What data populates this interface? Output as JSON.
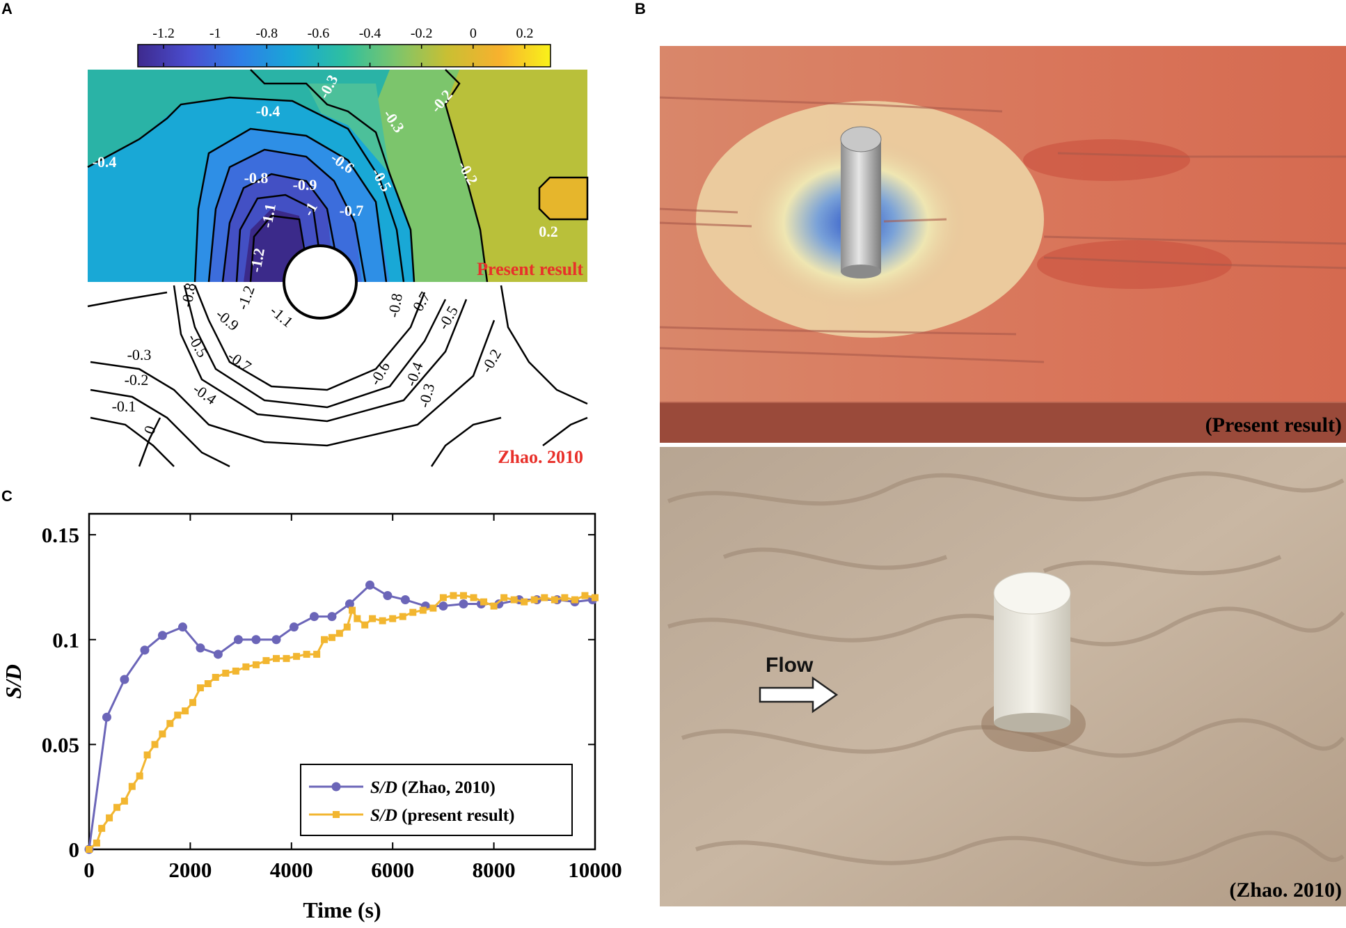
{
  "panels": {
    "a": {
      "letter": "A",
      "colorbar_ticks": [
        "-1.2",
        "-1",
        "-0.8",
        "-0.6",
        "-0.4",
        "-0.2",
        "0",
        "0.2"
      ],
      "colorbar_values": [
        -1.2,
        -1.0,
        -0.8,
        -0.6,
        -0.4,
        -0.2,
        0.0,
        0.2
      ],
      "colorbar_range": [
        -1.3,
        0.3
      ],
      "colorbar_colors": [
        "#3e2a8e",
        "#4a4ed0",
        "#2e7fe6",
        "#19a8d6",
        "#2ebfa0",
        "#7cc56c",
        "#c9bf33",
        "#f7b12e",
        "#f9f21a"
      ],
      "top_labels": [
        "-0.3",
        "-0.2",
        "-0.4",
        "-0.3",
        "-0.4",
        "-0.2",
        "-0.6",
        "-0.5",
        "-0.8",
        "-0.9",
        "-1.1",
        "-1",
        "-0.7",
        "-1.2",
        "0.2"
      ],
      "top_caption": "Present result",
      "bottom_labels": [
        "-0.8",
        "-0.7",
        "-0.8",
        "-1.2",
        "-0.9",
        "-1.1",
        "-0.5",
        "-0.5",
        "-0.7",
        "-0.3",
        "-0.6",
        "-0.4",
        "-0.2",
        "-0.3",
        "-0.2",
        "-0.4",
        "-0.1",
        "0"
      ],
      "bottom_caption": "Zhao. 2010",
      "caption_color": "#e8302a"
    },
    "b": {
      "letter": "B",
      "top_caption": "(Present result)",
      "bottom_caption": "(Zhao. 2010)",
      "flow_label": "Flow"
    },
    "c": {
      "letter": "C",
      "chart_data": {
        "type": "line",
        "xlabel": "Time (s)",
        "ylabel": "S/D",
        "xlim": [
          0,
          10000
        ],
        "ylim": [
          0,
          0.16
        ],
        "xticks": [
          0,
          2000,
          4000,
          6000,
          8000,
          10000
        ],
        "xtick_labels": [
          "0",
          "2000",
          "4000",
          "6000",
          "8000",
          "10000"
        ],
        "yticks": [
          0,
          0.05,
          0.1,
          0.15
        ],
        "ytick_labels": [
          "0",
          "0.05",
          "0.1",
          "0.15"
        ],
        "legend_position": "bottom-right",
        "series": [
          {
            "name": "S/D (Zhao, 2010)",
            "legend_italic": "S/D",
            "legend_rest": " (Zhao, 2010)",
            "color": "#6b65b8",
            "marker": "circle",
            "x": [
              0,
              350,
              700,
              1100,
              1450,
              1850,
              2200,
              2550,
              2950,
              3300,
              3700,
              4050,
              4450,
              4800,
              5150,
              5550,
              5900,
              6250,
              6650,
              7000,
              7400,
              7750,
              8100,
              8500,
              8850,
              9250,
              9600,
              9950
            ],
            "y": [
              0.0,
              0.063,
              0.081,
              0.095,
              0.102,
              0.106,
              0.096,
              0.093,
              0.1,
              0.1,
              0.1,
              0.106,
              0.111,
              0.111,
              0.117,
              0.126,
              0.121,
              0.119,
              0.116,
              0.116,
              0.117,
              0.117,
              0.117,
              0.119,
              0.119,
              0.119,
              0.118,
              0.119
            ]
          },
          {
            "name": "S/D (present result)",
            "legend_italic": "S/D",
            "legend_rest": " (present result)",
            "color": "#f2b630",
            "marker": "square",
            "x": [
              0,
              150,
              250,
              400,
              550,
              700,
              850,
              1000,
              1150,
              1300,
              1450,
              1600,
              1750,
              1900,
              2050,
              2200,
              2350,
              2500,
              2700,
              2900,
              3100,
              3300,
              3500,
              3700,
              3900,
              4100,
              4300,
              4500,
              4650,
              4800,
              4950,
              5100,
              5200,
              5300,
              5450,
              5600,
              5800,
              6000,
              6200,
              6400,
              6600,
              6800,
              7000,
              7200,
              7400,
              7600,
              7800,
              8000,
              8200,
              8400,
              8600,
              8800,
              9000,
              9200,
              9400,
              9600,
              9800,
              10000
            ],
            "y": [
              0.0,
              0.003,
              0.01,
              0.015,
              0.02,
              0.023,
              0.03,
              0.035,
              0.045,
              0.05,
              0.055,
              0.06,
              0.064,
              0.066,
              0.07,
              0.077,
              0.079,
              0.082,
              0.084,
              0.085,
              0.087,
              0.088,
              0.09,
              0.091,
              0.091,
              0.092,
              0.093,
              0.093,
              0.1,
              0.101,
              0.103,
              0.106,
              0.114,
              0.11,
              0.107,
              0.11,
              0.109,
              0.11,
              0.111,
              0.113,
              0.114,
              0.115,
              0.12,
              0.121,
              0.121,
              0.12,
              0.118,
              0.116,
              0.12,
              0.119,
              0.118,
              0.119,
              0.12,
              0.119,
              0.12,
              0.119,
              0.121,
              0.12
            ]
          }
        ]
      }
    }
  }
}
